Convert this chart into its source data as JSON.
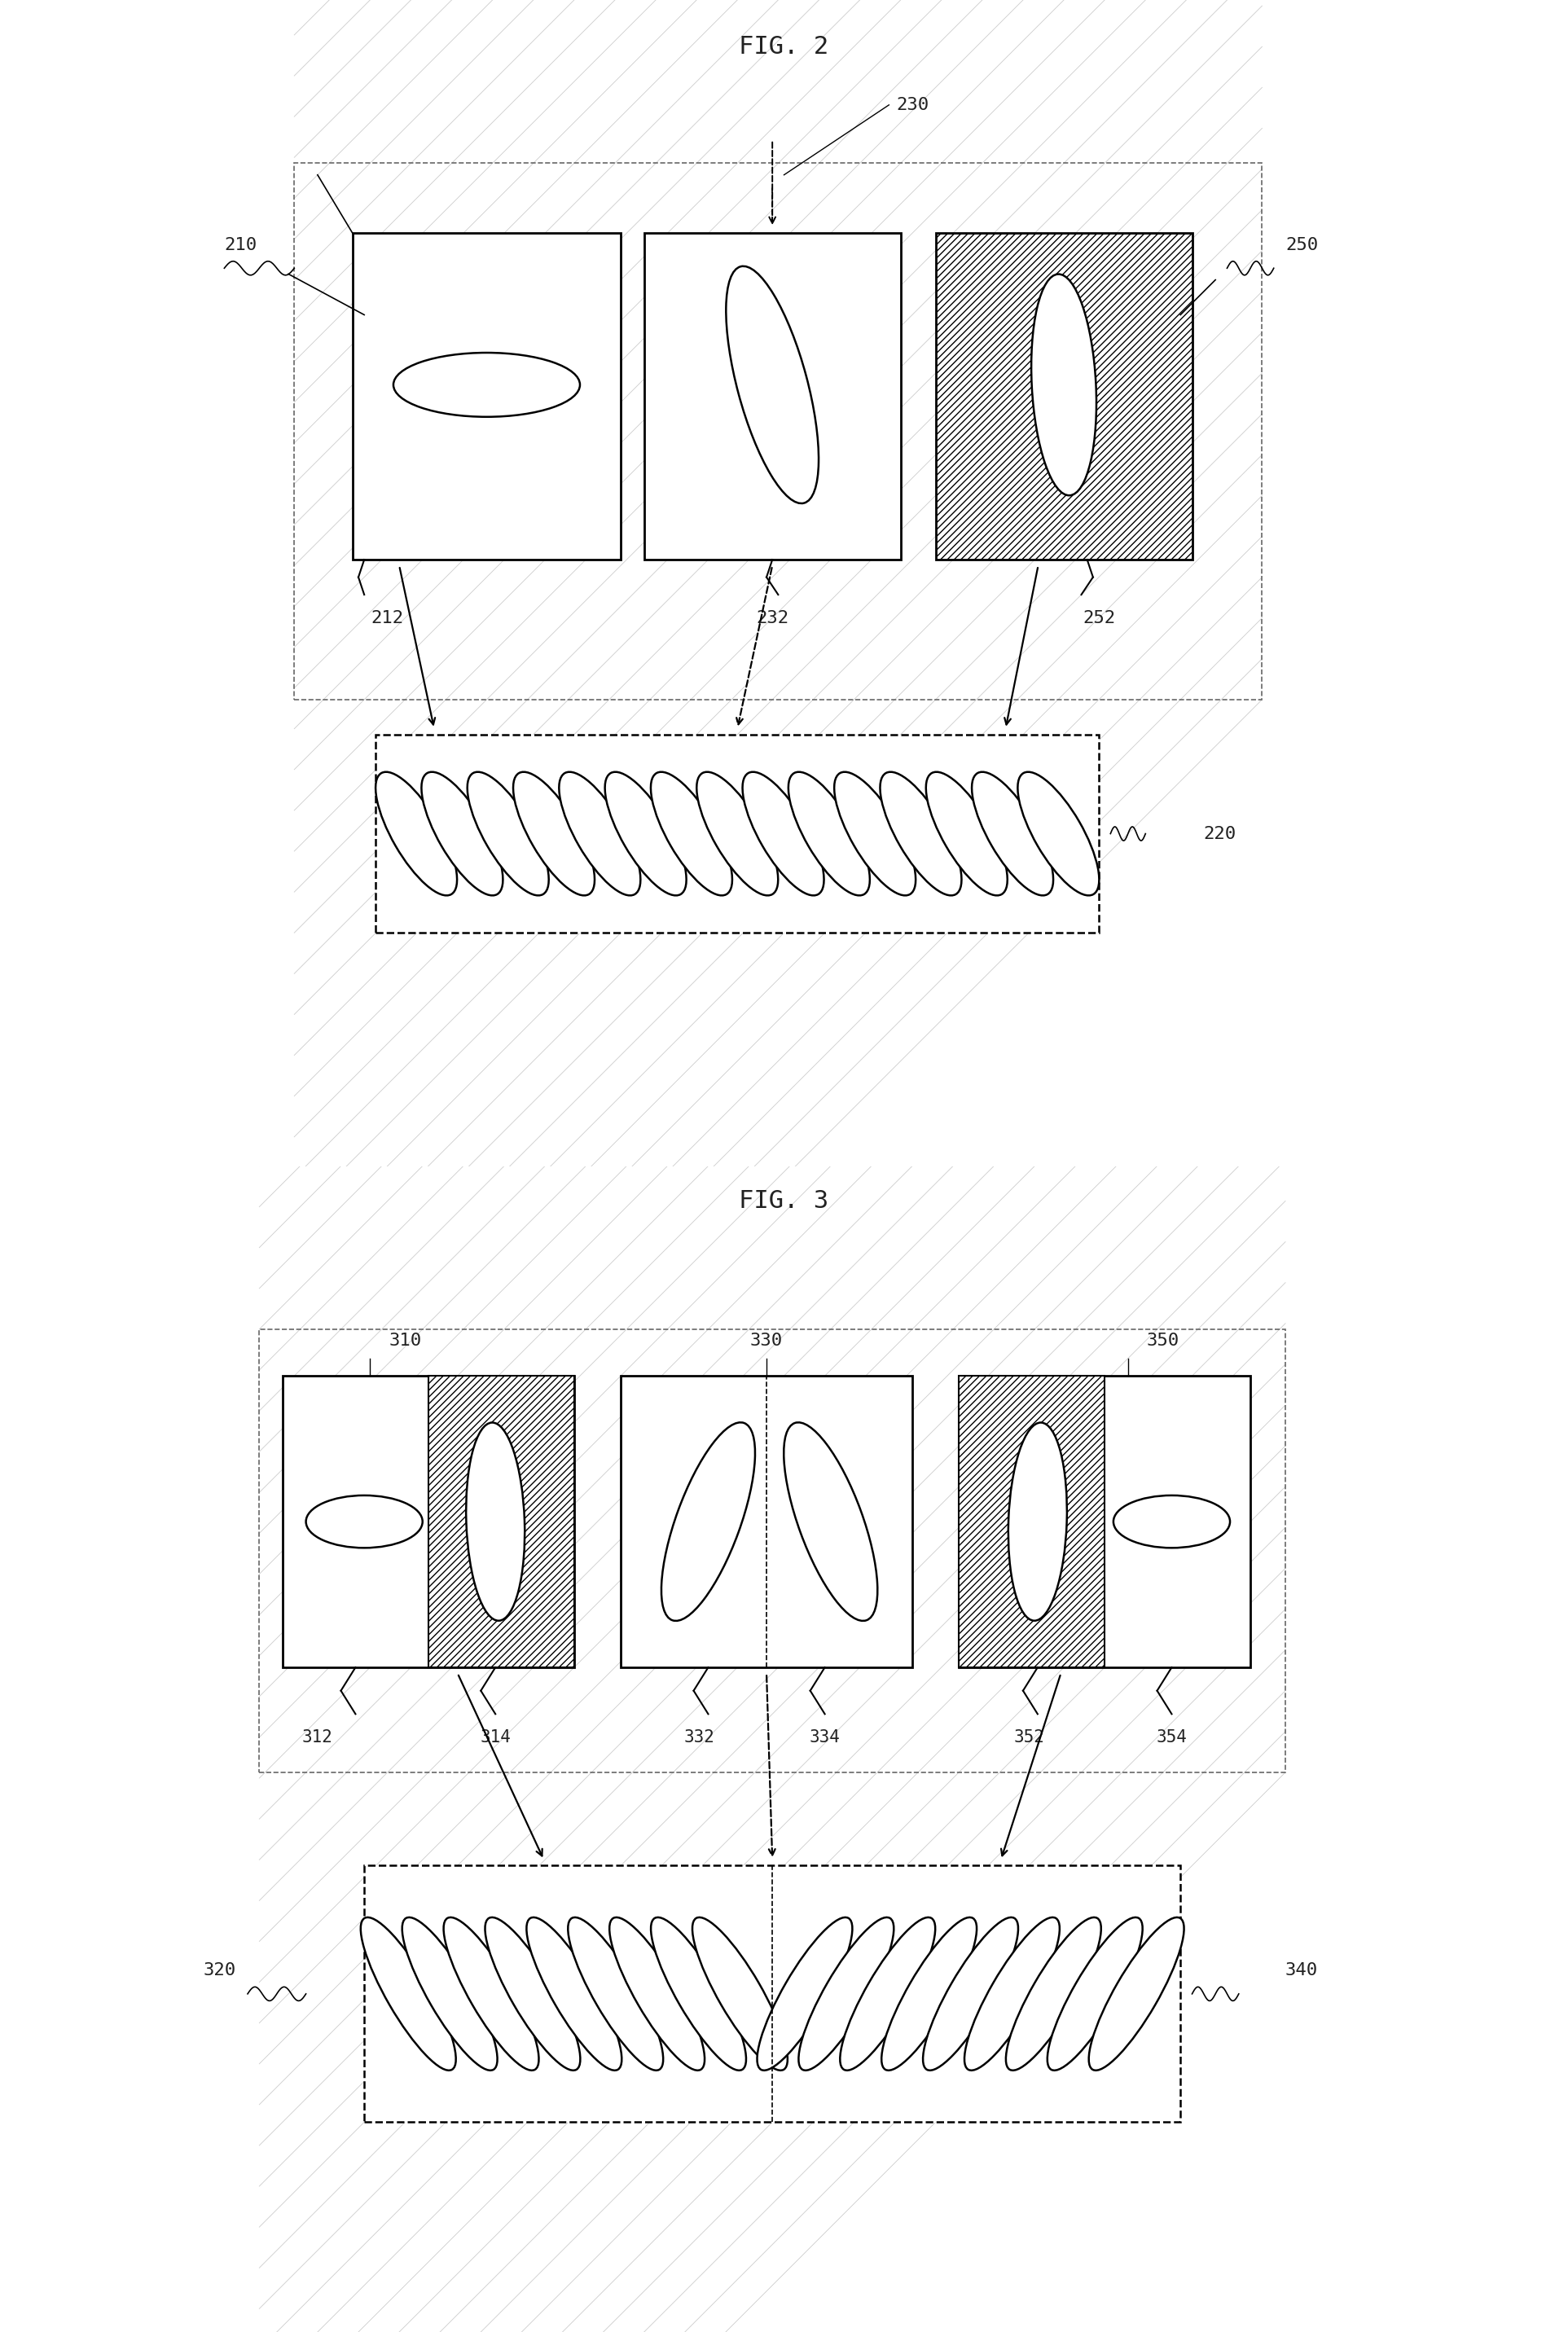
{
  "fig2_title": "FIG. 2",
  "fig3_title": "FIG. 3",
  "bg_color": "#ffffff",
  "line_color": "#000000",
  "grid_color": "#d8dce8",
  "hatch_color": "#bbbbbb",
  "label_color": "#222222",
  "font_size_title": 22,
  "font_size_label": 16,
  "font_family": "DejaVu Sans Mono"
}
